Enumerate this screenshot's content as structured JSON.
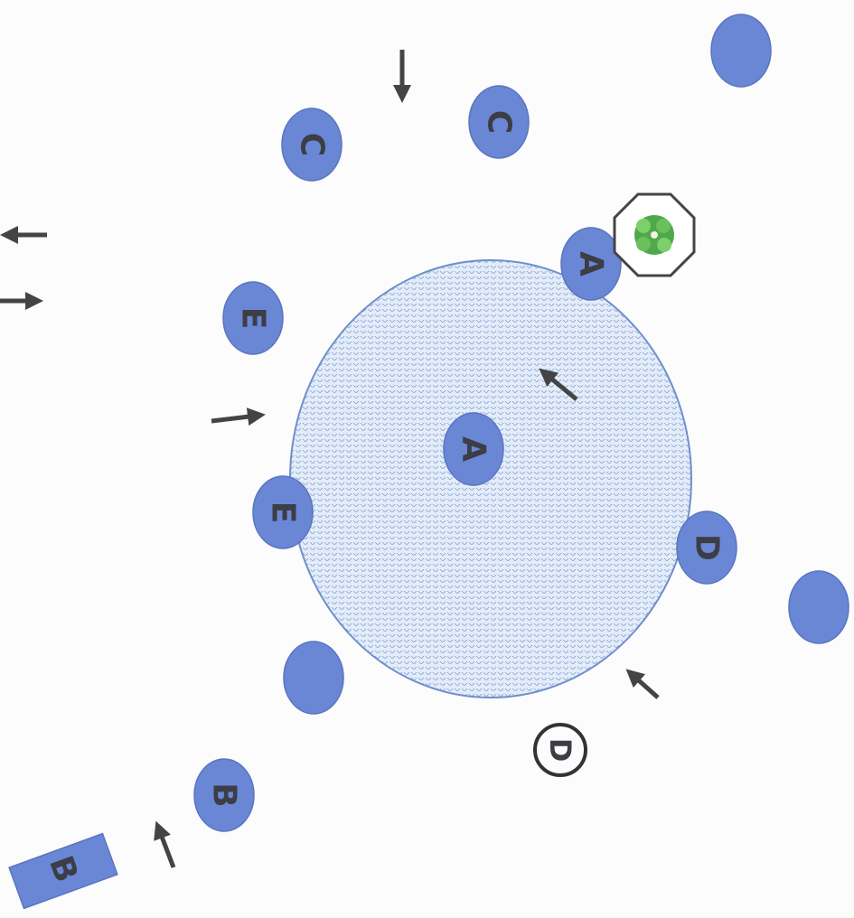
{
  "nodes": [
    {
      "label": "C"
    },
    {
      "label": "C"
    },
    {
      "label": "A"
    },
    {
      "label": "E"
    },
    {
      "label": "A"
    },
    {
      "label": "E"
    },
    {
      "label": "D"
    },
    {
      "label": "B"
    },
    {
      "label": "B"
    },
    {
      "label": "D"
    }
  ]
}
